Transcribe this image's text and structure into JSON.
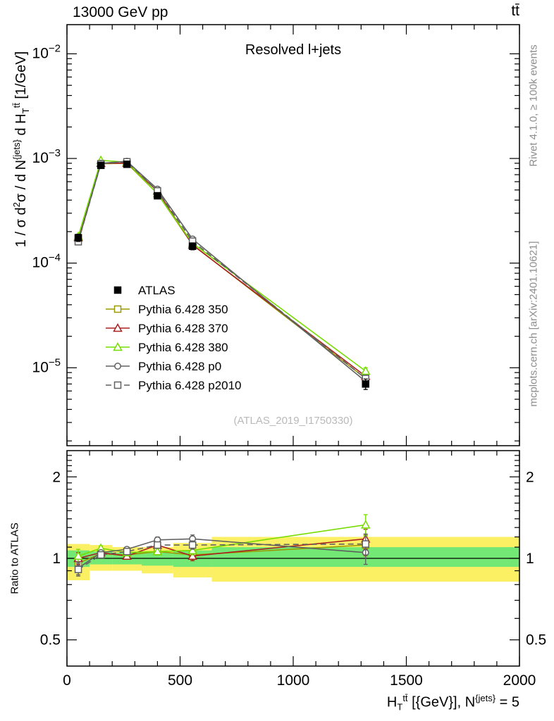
{
  "header": {
    "beam_energy": "13000 GeV pp",
    "process": "tt̄"
  },
  "side_texts": {
    "rivet": "Rivet 4.1.0, ≥ 100k events",
    "mcplots": "mcplots.cern.ch [arXiv:2401.10621]"
  },
  "labels": {
    "panel_title": "Resolved l+jets",
    "watermark": "(ATLAS_2019_I1750330)",
    "ratio_ylabel": "Ratio to ATLAS",
    "ylabel_rich": [
      {
        "t": "1 / σ d",
        "m": "n"
      },
      {
        "t": "2",
        "m": "sup"
      },
      {
        "t": "σ / d N",
        "m": "n"
      },
      {
        "t": "{jets}",
        "m": "sup"
      },
      {
        "t": " d H",
        "m": "n"
      },
      {
        "t": "T",
        "m": "sub"
      },
      {
        "t": "tt̄",
        "m": "sup"
      },
      {
        "t": " [1/GeV]",
        "m": "n"
      }
    ],
    "xlabel_rich": [
      {
        "t": "H",
        "m": "n"
      },
      {
        "t": "T",
        "m": "sub"
      },
      {
        "t": "tt̄",
        "m": "sup"
      },
      {
        "t": " [{GeV}], N",
        "m": "n"
      },
      {
        "t": "{jets}",
        "m": "sup"
      },
      {
        "t": " = 5",
        "m": "n"
      }
    ]
  },
  "chart_data": {
    "type": "line",
    "title": "Resolved l+jets",
    "xlabel": "H_T^{ttbar} [{GeV}], N^{jets} = 5",
    "ylabel": "1/sigma d2sigma / dN^{jets} dH_T^{ttbar} [1/GeV]",
    "ratio_ylabel": "Ratio to ATLAS",
    "xlim": [
      0,
      2000
    ],
    "xticks": [
      0,
      500,
      1000,
      1500,
      2000
    ],
    "x_minor_step": 100,
    "x_edges": [
      0,
      100,
      200,
      330,
      470,
      640,
      2000
    ],
    "x_centers": [
      50,
      150,
      265,
      400,
      555,
      1320
    ],
    "legend_position": "inside-left-middle",
    "grid": false,
    "main": {
      "yscale": "log",
      "ylim": [
        1.8e-06,
        0.019
      ],
      "ytick_decades": [
        -5,
        -4,
        -3,
        -2
      ],
      "series": [
        {
          "id": "atlas",
          "name": "ATLAS",
          "marker": "square",
          "filled": true,
          "color": "#000000",
          "line": "none",
          "values": [
            0.000175,
            0.00086,
            0.00088,
            0.00044,
            0.000145,
            7e-06
          ],
          "errors": [
            1.4e-05,
            3.5e-05,
            3.5e-05,
            2.2e-05,
            1.1e-05,
            8e-07
          ]
        },
        {
          "id": "py350",
          "name": "Pythia 6.428 350",
          "marker": "square",
          "filled": false,
          "color": "#9a9a00",
          "line": "solid",
          "values": [
            0.00017,
            0.00089,
            0.0009,
            0.00046,
            0.00015,
            7.9e-06
          ],
          "errors": [
            6e-06,
            1.6e-05,
            1.6e-05,
            1e-05,
            6e-06,
            6e-07
          ]
        },
        {
          "id": "py370",
          "name": "Pythia 6.428 370",
          "marker": "triangle",
          "filled": false,
          "color": "#aa2020",
          "line": "solid",
          "values": [
            0.000176,
            0.0009,
            0.0009,
            0.00049,
            0.000149,
            8.3e-06
          ],
          "errors": [
            6e-06,
            1.6e-05,
            1.6e-05,
            1e-05,
            6e-06,
            6e-07
          ]
        },
        {
          "id": "py380",
          "name": "Pythia 6.428 380",
          "marker": "triangle",
          "filled": false,
          "color": "#77dd00",
          "line": "solid",
          "values": [
            0.00018,
            0.00096,
            0.00092,
            0.00046,
            0.000155,
            9.3e-06
          ],
          "errors": [
            6e-06,
            1.6e-05,
            1.6e-05,
            1e-05,
            6e-06,
            7e-07
          ]
        },
        {
          "id": "pyp0",
          "name": "Pythia 6.428 p0",
          "marker": "circle",
          "filled": false,
          "color": "#606060",
          "line": "solid",
          "values": [
            0.000162,
            0.0009,
            0.00094,
            0.00051,
            0.00017,
            7.4e-06
          ],
          "errors": [
            6e-06,
            1.6e-05,
            1.6e-05,
            1e-05,
            6e-06,
            6e-07
          ]
        },
        {
          "id": "pyp2010",
          "name": "Pythia 6.428 p2010",
          "marker": "square",
          "filled": false,
          "color": "#606060",
          "line": "dashed",
          "values": [
            0.00016,
            0.00089,
            0.00093,
            0.00049,
            0.000162,
            7.9e-06
          ],
          "errors": [
            6e-06,
            1.6e-05,
            1.6e-05,
            1e-05,
            6e-06,
            6e-07
          ]
        }
      ]
    },
    "ratio": {
      "yscale": "log",
      "ylim": [
        0.4,
        2.5
      ],
      "yticks": [
        0.5,
        1,
        2
      ],
      "yminor": [
        0.6,
        0.7,
        0.8,
        0.9,
        1.1,
        1.2,
        1.3,
        1.4,
        1.5,
        1.6,
        1.7,
        1.8,
        1.9,
        2.1,
        2.2,
        2.3,
        2.4
      ],
      "reference": 1,
      "bands": {
        "yellow": {
          "color": "#fbf064",
          "lo": [
            0.83,
            0.9,
            0.9,
            0.88,
            0.85,
            0.82
          ],
          "hi": [
            1.13,
            1.12,
            1.1,
            1.1,
            1.14,
            1.2
          ]
        },
        "green": {
          "color": "#74e874",
          "lo": [
            0.93,
            0.95,
            0.95,
            0.94,
            0.93,
            0.93
          ],
          "hi": [
            1.07,
            1.06,
            1.05,
            1.05,
            1.07,
            1.1
          ]
        }
      },
      "series": [
        {
          "name": "Pythia 6.428 350",
          "values": [
            0.96,
            1.04,
            1.03,
            1.06,
            1.03,
            1.12
          ],
          "errors": [
            0.05,
            0.02,
            0.02,
            0.03,
            0.04,
            0.1
          ]
        },
        {
          "name": "Pythia 6.428 370",
          "values": [
            1.0,
            1.05,
            1.02,
            1.12,
            1.02,
            1.18
          ],
          "errors": [
            0.05,
            0.02,
            0.02,
            0.03,
            0.04,
            0.1
          ]
        },
        {
          "name": "Pythia 6.428 380",
          "values": [
            1.02,
            1.09,
            1.05,
            1.06,
            1.07,
            1.33
          ],
          "errors": [
            0.06,
            0.02,
            0.02,
            0.03,
            0.04,
            0.12
          ]
        },
        {
          "name": "Pythia 6.428 p0",
          "values": [
            0.92,
            1.05,
            1.08,
            1.17,
            1.18,
            1.05
          ],
          "errors": [
            0.05,
            0.02,
            0.02,
            0.03,
            0.04,
            0.1
          ]
        },
        {
          "name": "Pythia 6.428 p2010",
          "values": [
            0.91,
            1.03,
            1.06,
            1.12,
            1.12,
            1.13
          ],
          "errors": [
            0.05,
            0.02,
            0.02,
            0.03,
            0.04,
            0.1
          ]
        }
      ]
    }
  }
}
